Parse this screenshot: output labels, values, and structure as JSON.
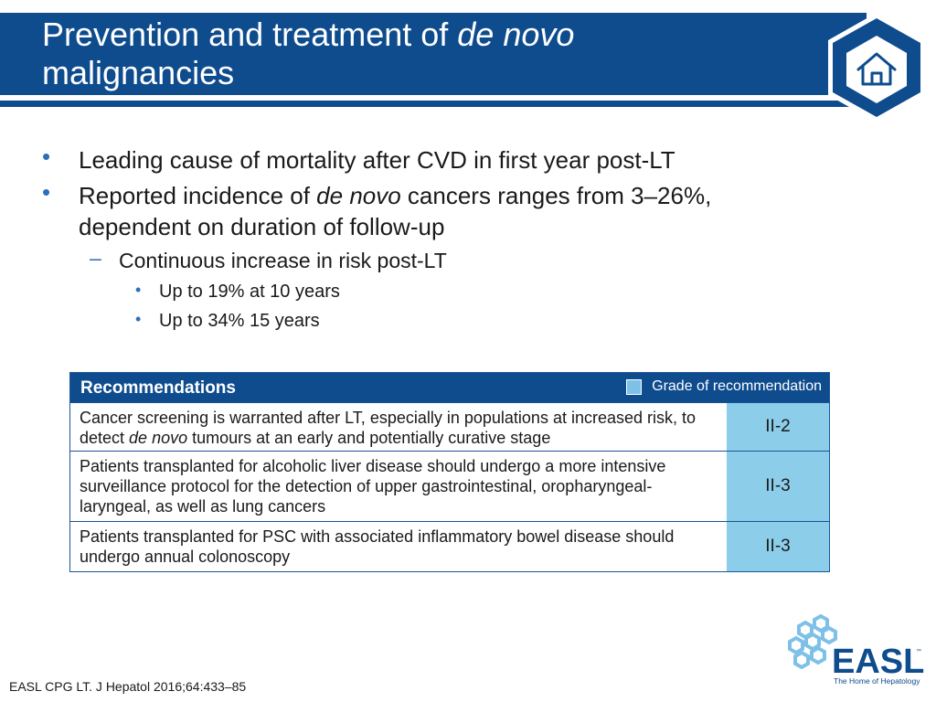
{
  "header": {
    "title_part1": "Prevention and treatment of ",
    "title_italic": "de novo",
    "title_part2": "malignancies",
    "home_icon": "home-icon"
  },
  "bullets": {
    "b1": "Leading cause of mortality after CVD in first year post-LT",
    "b2_pre": "Reported incidence of ",
    "b2_italic": "de novo",
    "b2_post": " cancers ranges from 3–26%,",
    "b2_line2": "dependent on duration of follow-up",
    "sub1": "Continuous increase in risk post-LT",
    "subsub1": "Up to 19% at 10 years",
    "subsub2": "Up to 34% 15 years"
  },
  "recommendations": {
    "heading": "Recommendations",
    "legend": "Grade of recommendation",
    "rows": [
      {
        "text_pre": "Cancer screening is warranted after LT, especially in populations at increased risk, to detect ",
        "text_italic": "de novo",
        "text_post": " tumours at an early and potentially curative stage",
        "grade": "II-2"
      },
      {
        "text": "Patients transplanted for alcoholic liver disease should undergo a more intensive surveillance protocol for the detection of upper gastrointestinal, oropharyngeal-laryngeal, as well as lung cancers",
        "grade": "II-3"
      },
      {
        "text": "Patients transplanted for PSC with associated inflammatory bowel disease should undergo annual colonoscopy",
        "grade": "II-3"
      }
    ]
  },
  "footer": {
    "reference": "EASL CPG LT. J Hepatol 2016;64:433–85",
    "logo_text": "EASL",
    "logo_tm": "™",
    "logo_tagline": "The Home of Hepatology"
  },
  "colors": {
    "brand_blue": "#0e4c8e",
    "grade_fill": "#8ccde9",
    "bullet_blue": "#2c6fba"
  }
}
